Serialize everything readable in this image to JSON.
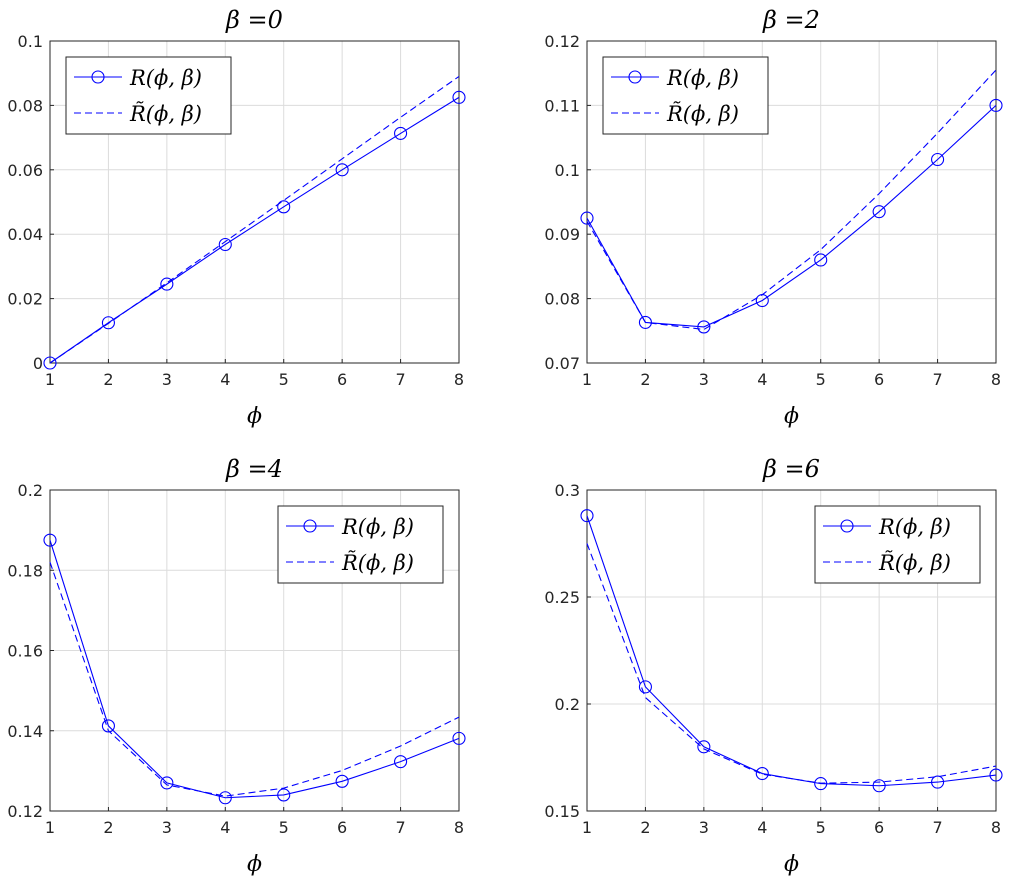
{
  "chart_data": [
    {
      "type": "line",
      "title": "β =0",
      "xlabel": "ϕ",
      "ylabel": "",
      "xlim": [
        1,
        8
      ],
      "ylim": [
        0,
        0.1
      ],
      "xticks": [
        "1",
        "2",
        "3",
        "4",
        "5",
        "6",
        "7",
        "8"
      ],
      "yticks": [
        "0",
        "0.02",
        "0.04",
        "0.06",
        "0.08",
        "0.1"
      ],
      "grid": true,
      "legend_position": "top-left",
      "x": [
        1,
        2,
        3,
        4,
        5,
        6,
        7,
        8
      ],
      "series": [
        {
          "name": "R(ϕ, β)",
          "style": "solid-circle",
          "values": [
            0.0,
            0.0125,
            0.0245,
            0.0368,
            0.0485,
            0.06,
            0.0713,
            0.0825
          ]
        },
        {
          "name": "R̃(ϕ, β)",
          "style": "dashed",
          "values": [
            0.0,
            0.0123,
            0.0249,
            0.0377,
            0.0505,
            0.0634,
            0.0763,
            0.089
          ]
        }
      ]
    },
    {
      "type": "line",
      "title": "β =2",
      "xlabel": "ϕ",
      "ylabel": "",
      "xlim": [
        1,
        8
      ],
      "ylim": [
        0.07,
        0.12
      ],
      "xticks": [
        "1",
        "2",
        "3",
        "4",
        "5",
        "6",
        "7",
        "8"
      ],
      "yticks": [
        "0.07",
        "0.08",
        "0.09",
        "0.1",
        "0.11",
        "0.12"
      ],
      "grid": true,
      "legend_position": "top-left",
      "x": [
        1,
        2,
        3,
        4,
        5,
        6,
        7,
        8
      ],
      "series": [
        {
          "name": "R(ϕ, β)",
          "style": "solid-circle",
          "values": [
            0.0925,
            0.0763,
            0.0756,
            0.0797,
            0.086,
            0.0935,
            0.1016,
            0.11
          ]
        },
        {
          "name": "R̃(ϕ, β)",
          "style": "dashed",
          "values": [
            0.092,
            0.0763,
            0.0752,
            0.0806,
            0.0876,
            0.0963,
            0.1057,
            0.1155
          ]
        }
      ]
    },
    {
      "type": "line",
      "title": "β =4",
      "xlabel": "ϕ",
      "ylabel": "",
      "xlim": [
        1,
        8
      ],
      "ylim": [
        0.12,
        0.2
      ],
      "xticks": [
        "1",
        "2",
        "3",
        "4",
        "5",
        "6",
        "7",
        "8"
      ],
      "yticks": [
        "0.12",
        "0.14",
        "0.16",
        "0.18",
        "0.2"
      ],
      "grid": true,
      "legend_position": "top-right",
      "x": [
        1,
        2,
        3,
        4,
        5,
        6,
        7,
        8
      ],
      "series": [
        {
          "name": "R(ϕ, β)",
          "style": "solid-circle",
          "values": [
            0.1875,
            0.1412,
            0.127,
            0.1233,
            0.124,
            0.1274,
            0.1323,
            0.1381
          ]
        },
        {
          "name": "R̃(ϕ, β)",
          "style": "dashed",
          "values": [
            0.182,
            0.14,
            0.1265,
            0.1237,
            0.1257,
            0.1301,
            0.1362,
            0.1434
          ]
        }
      ]
    },
    {
      "type": "line",
      "title": "β =6",
      "xlabel": "ϕ",
      "ylabel": "",
      "xlim": [
        1,
        8
      ],
      "ylim": [
        0.15,
        0.3
      ],
      "xticks": [
        "1",
        "2",
        "3",
        "4",
        "5",
        "6",
        "7",
        "8"
      ],
      "yticks": [
        "0.15",
        "0.2",
        "0.25",
        "0.3"
      ],
      "grid": true,
      "legend_position": "top-right",
      "x": [
        1,
        2,
        3,
        4,
        5,
        6,
        7,
        8
      ],
      "series": [
        {
          "name": "R(ϕ, β)",
          "style": "solid-circle",
          "values": [
            0.288,
            0.208,
            0.18,
            0.1675,
            0.1628,
            0.1618,
            0.1635,
            0.1668
          ]
        },
        {
          "name": "R̃(ϕ, β)",
          "style": "dashed",
          "values": [
            0.275,
            0.203,
            0.179,
            0.1672,
            0.163,
            0.1635,
            0.166,
            0.171
          ]
        }
      ]
    }
  ],
  "colors": {
    "series": "#0000ff",
    "axis": "#262626",
    "grid": "#dcdcdc"
  }
}
